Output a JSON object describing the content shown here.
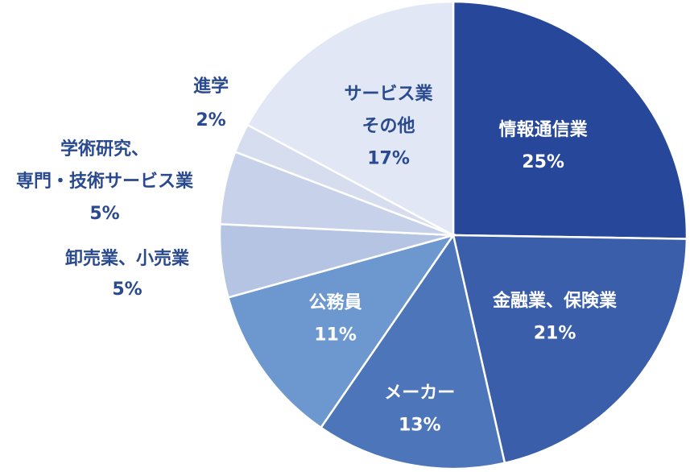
{
  "chart_data": {
    "type": "pie",
    "start": "top",
    "direction": "clockwise",
    "slices": [
      {
        "label": "情報通信業",
        "value": 25,
        "value_label": "25%",
        "color": "#26479a",
        "text_color": "#ffffff"
      },
      {
        "label": "金融業、保険業",
        "value": 21,
        "value_label": "21%",
        "color": "#3a5ea9",
        "text_color": "#ffffff"
      },
      {
        "label": "メーカー",
        "value": 13,
        "value_label": "13%",
        "color": "#4d76ba",
        "text_color": "#ffffff"
      },
      {
        "label": "公務員",
        "value": 11,
        "value_label": "11%",
        "color": "#6d98cf",
        "text_color": "#ffffff"
      },
      {
        "label": "卸売業、小売業",
        "value": 5,
        "value_label": "5%",
        "color": "#b6c4e3",
        "text_color": "#2a4a8f",
        "label_outside": true
      },
      {
        "label": "学術研究、専門・技術サービス業",
        "label_lines": [
          "学術研究、",
          "専門・技術サービス業"
        ],
        "value": 5,
        "value_label": "5%",
        "color": "#c7d2ea",
        "text_color": "#2a4a8f",
        "label_outside": true
      },
      {
        "label": "進学",
        "value": 2,
        "value_label": "2%",
        "color": "#d5ddef",
        "text_color": "#2a4a8f",
        "label_outside": true
      },
      {
        "label": "サービス業その他",
        "label_lines": [
          "サービス業",
          "その他"
        ],
        "value": 17,
        "value_label": "17%",
        "color": "#e1e7f4",
        "text_color": "#2a4a8f"
      }
    ]
  }
}
